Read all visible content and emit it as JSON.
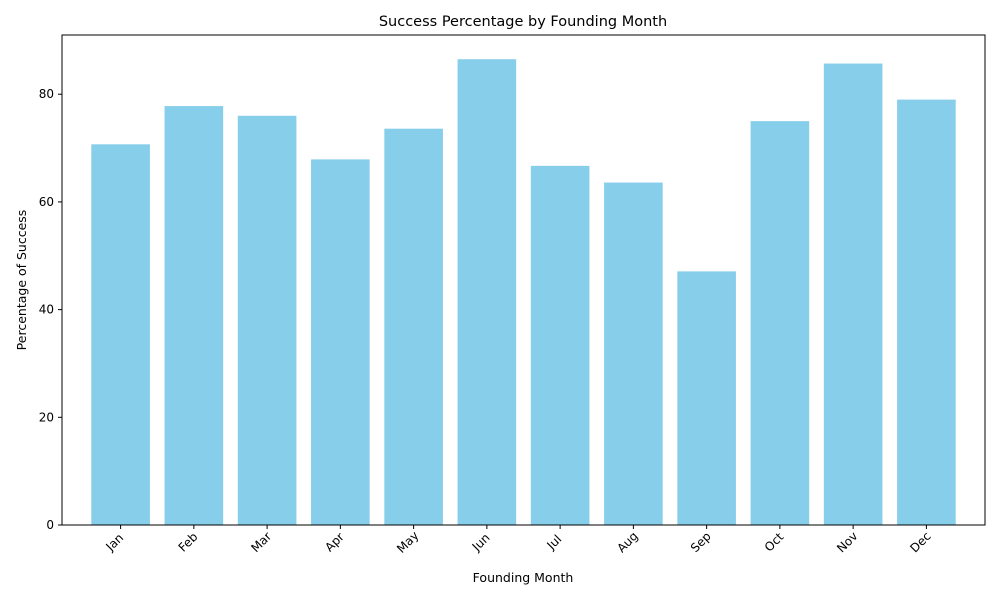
{
  "chart_data": {
    "type": "bar",
    "title": "Success Percentage by Founding Month",
    "xlabel": "Founding Month",
    "ylabel": "Percentage of Success",
    "categories": [
      "Jan",
      "Feb",
      "Mar",
      "Apr",
      "May",
      "Jun",
      "Jul",
      "Aug",
      "Sep",
      "Oct",
      "Nov",
      "Dec"
    ],
    "values": [
      70.7,
      77.8,
      76.0,
      67.9,
      73.6,
      86.5,
      66.7,
      63.6,
      47.1,
      75.0,
      85.7,
      79.0
    ],
    "ylim": [
      0,
      91
    ],
    "yticks": [
      0,
      20,
      40,
      60,
      80
    ],
    "bar_color": "#87CEEB",
    "grid": false,
    "legend": "none"
  }
}
